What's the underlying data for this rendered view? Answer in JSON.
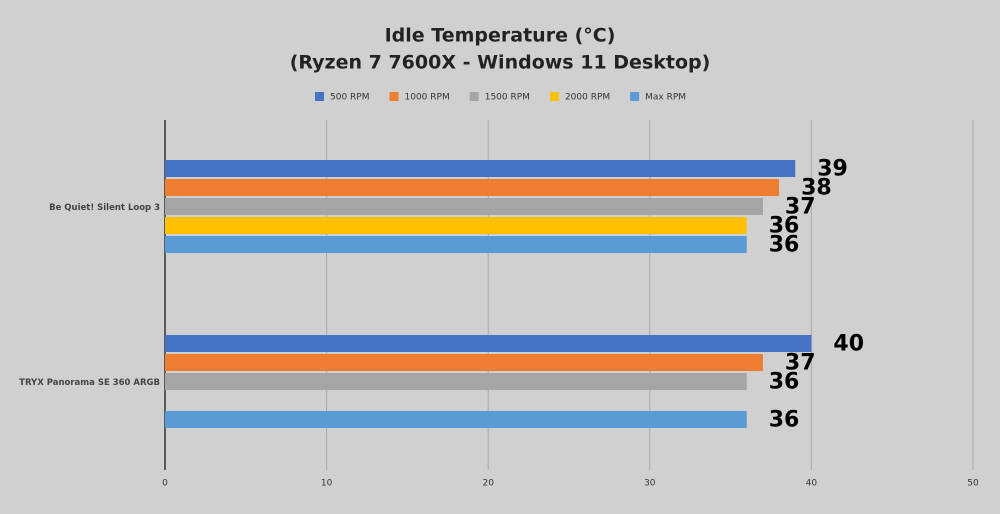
{
  "chart_data": {
    "type": "hbar",
    "title": "Idle Temperature (°C)",
    "subtitle": "(Ryzen 7 7600X - Windows 11 Desktop)",
    "categories": [
      "Be Quiet! Silent Loop 3",
      "TRYX Panorama SE 360 ARGB"
    ],
    "series": [
      {
        "name": "500 RPM",
        "color": "#4472c4",
        "values": [
          39,
          40
        ]
      },
      {
        "name": "1000 RPM",
        "color": "#ed7d31",
        "values": [
          38,
          37
        ]
      },
      {
        "name": "1500 RPM",
        "color": "#a5a5a5",
        "values": [
          37,
          36
        ]
      },
      {
        "name": "2000 RPM",
        "color": "#ffc000",
        "values": [
          36,
          null
        ]
      },
      {
        "name": "Max RPM",
        "color": "#5b9bd5",
        "values": [
          36,
          36
        ]
      }
    ],
    "xlim": [
      0,
      50
    ],
    "xticks": [
      0,
      10,
      20,
      30,
      40,
      50
    ],
    "grid": true
  }
}
